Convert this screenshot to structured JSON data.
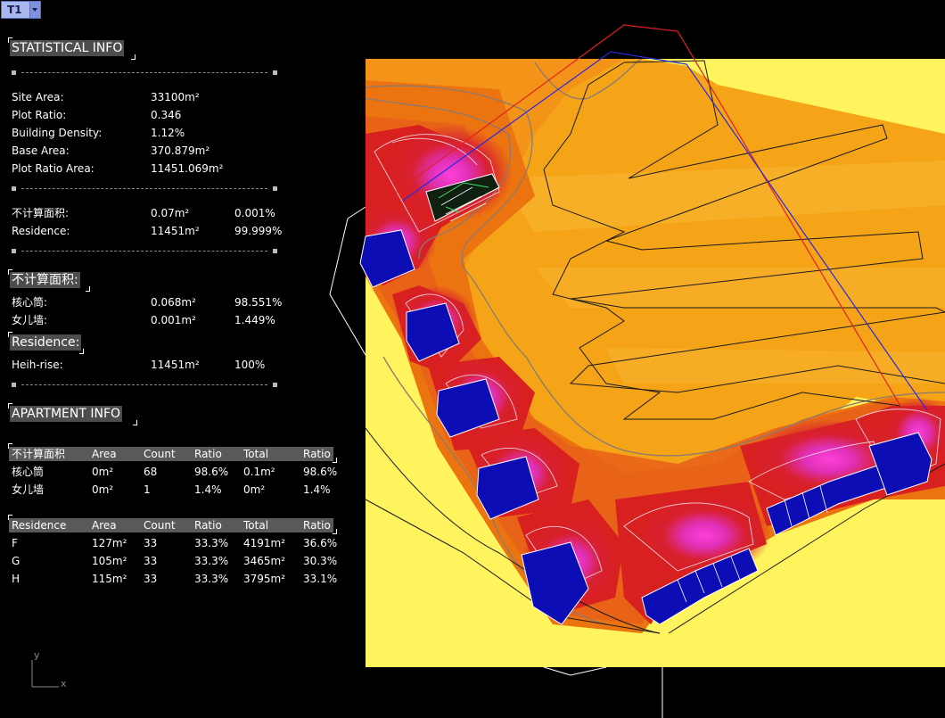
{
  "viewport": {
    "tab_label": "T1"
  },
  "statistical_info": {
    "heading": "STATISTICAL INFO",
    "rows": [
      {
        "label": "Site Area:",
        "value": "33100m²"
      },
      {
        "label": "Plot Ratio:",
        "value": "0.346"
      },
      {
        "label": "Building Density:",
        "value": "1.12%"
      },
      {
        "label": "Base Area:",
        "value": "370.879m²"
      },
      {
        "label": "Plot Ratio Area:",
        "value": "11451.069m²"
      }
    ],
    "split_rows": [
      {
        "label": "不计算面积:",
        "value": "0.07m²",
        "percent": "0.001%"
      },
      {
        "label": "Residence:",
        "value": "11451m²",
        "percent": "99.999%"
      }
    ]
  },
  "excluded_area": {
    "heading": "不计算面积:",
    "rows": [
      {
        "label": "核心筒:",
        "value": "0.068m²",
        "percent": "98.551%"
      },
      {
        "label": "女儿墙:",
        "value": "0.001m²",
        "percent": "1.449%"
      }
    ]
  },
  "residence": {
    "heading": "Residence:",
    "rows": [
      {
        "label": "Heih-rise:",
        "value": "11451m²",
        "percent": "100%"
      }
    ]
  },
  "apartment_info": {
    "heading": "APARTMENT INFO",
    "excluded_table": {
      "columns": [
        "不计算面积",
        "Area",
        "Count",
        "Ratio",
        "Total",
        "Ratio"
      ],
      "rows": [
        [
          "核心筒",
          "0m²",
          "68",
          "98.6%",
          "0.1m²",
          "98.6%"
        ],
        [
          "女儿墙",
          "0m²",
          "1",
          "1.4%",
          "0m²",
          "1.4%"
        ]
      ]
    },
    "residence_table": {
      "columns": [
        "Residence",
        "Area",
        "Count",
        "Ratio",
        "Total",
        "Ratio"
      ],
      "rows": [
        [
          "F",
          "127m²",
          "33",
          "33.3%",
          "4191m²",
          "36.6%"
        ],
        [
          "G",
          "105m²",
          "33",
          "33.3%",
          "3465m²",
          "30.3%"
        ],
        [
          "H",
          "115m²",
          "33",
          "33.3%",
          "3795m²",
          "33.1%"
        ]
      ]
    }
  },
  "axis": {
    "y_label": "y",
    "x_label": "x"
  },
  "colors": {
    "heatmap_yellow": "#fff45e",
    "heatmap_orange": "#f59f10",
    "heatmap_red": "#d82020",
    "heatmap_magenta": "#e030b8",
    "building_blue": "#0d0db5",
    "boundary_red": "#e02020",
    "boundary_blue": "#2020e0"
  }
}
